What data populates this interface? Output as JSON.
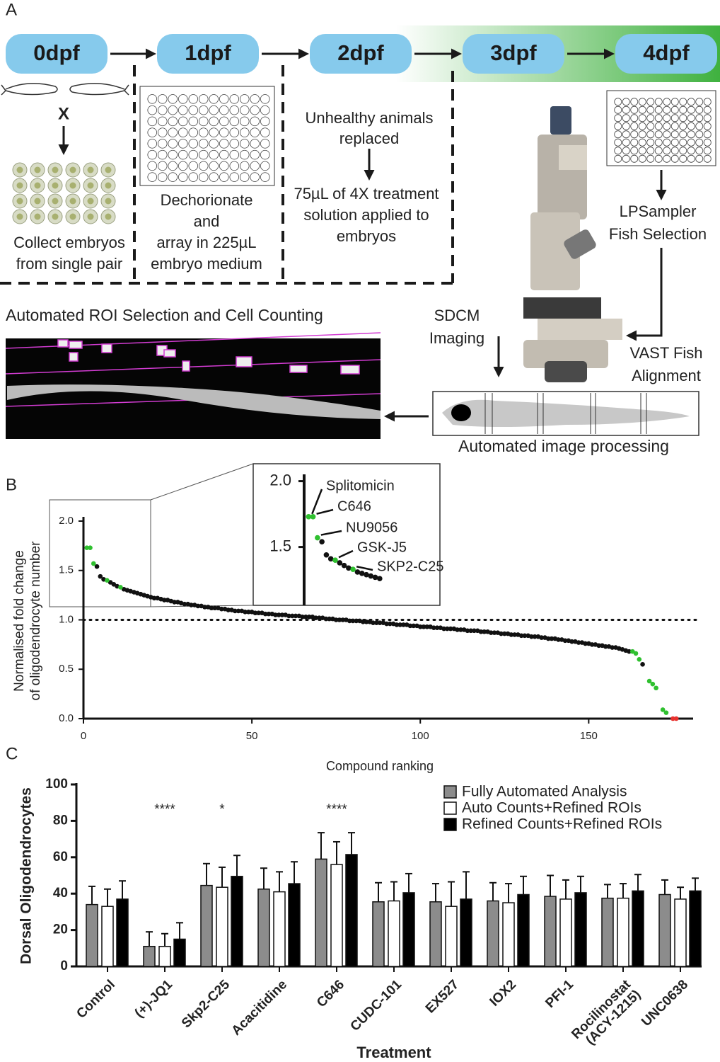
{
  "panel_labels": [
    "A",
    "B",
    "C"
  ],
  "workflow": {
    "stages": [
      "0dpf",
      "1dpf",
      "2dpf",
      "3dpf",
      "4dpf"
    ],
    "cross": "X",
    "collect": [
      "Collect embryos",
      "from single pair"
    ],
    "dechorionate": [
      "Dechorionate",
      "and",
      "array in 225µL",
      "embryo medium"
    ],
    "replaced": [
      "Unhealthy animals",
      "replaced"
    ],
    "treatment": [
      "75µL of 4X treatment",
      "solution applied to",
      "embryos"
    ],
    "lpsampler": [
      "LPSampler",
      "Fish Selection"
    ],
    "sdcm": [
      "SDCM",
      "Imaging"
    ],
    "vast": [
      "VAST Fish",
      "Alignment"
    ],
    "roi_title": "Automated ROI Selection and Cell Counting",
    "processing": "Automated image processing"
  },
  "chart_data": [
    {
      "type": "scatter",
      "y_label": [
        "Normalised  fold change",
        "of oligodendrocyte number"
      ],
      "x_label": "Compound ranking",
      "xlim": [
        0,
        181
      ],
      "xticks": [
        0,
        50,
        100,
        150
      ],
      "ylim": [
        0,
        2
      ],
      "yticks": [
        {
          "value": 0,
          "label": "0.0"
        },
        0.5,
        {
          "value": 1,
          "label": "1.0"
        },
        1.5,
        {
          "value": 2,
          "label": "2.0"
        }
      ],
      "hline": 1,
      "series": [
        {
          "color": "#111111",
          "x": [
            4,
            5,
            6,
            8,
            9,
            10,
            12,
            13,
            14,
            15,
            16,
            17,
            18,
            19,
            20,
            21,
            22,
            23,
            24,
            25,
            26,
            27,
            28,
            29,
            30,
            31,
            32,
            33,
            34,
            35,
            36,
            37,
            38,
            39,
            40,
            41,
            42,
            43,
            44,
            45,
            46,
            47,
            48,
            49,
            50,
            51,
            52,
            53,
            54,
            55,
            56,
            57,
            58,
            59,
            60,
            61,
            62,
            63,
            64,
            65,
            66,
            67,
            68,
            69,
            70,
            71,
            72,
            73,
            74,
            75,
            76,
            77,
            78,
            79,
            80,
            81,
            82,
            83,
            84,
            85,
            86,
            87,
            88,
            89,
            90,
            91,
            92,
            93,
            94,
            95,
            96,
            97,
            98,
            99,
            100,
            101,
            102,
            103,
            104,
            105,
            106,
            107,
            108,
            109,
            110,
            111,
            112,
            113,
            114,
            115,
            116,
            117,
            118,
            119,
            120,
            121,
            122,
            123,
            124,
            125,
            126,
            127,
            128,
            129,
            130,
            131,
            132,
            133,
            134,
            135,
            136,
            137,
            138,
            139,
            140,
            141,
            142,
            143,
            144,
            145,
            146,
            147,
            148,
            149,
            150,
            151,
            152,
            153,
            154,
            155,
            156,
            157,
            158,
            159,
            160,
            161,
            162,
            166
          ],
          "values": [
            1.54,
            1.44,
            1.41,
            1.38,
            1.36,
            1.34,
            1.31,
            1.3,
            1.29,
            1.28,
            1.27,
            1.26,
            1.25,
            1.24,
            1.23,
            1.22,
            1.22,
            1.21,
            1.2,
            1.2,
            1.19,
            1.18,
            1.18,
            1.17,
            1.16,
            1.16,
            1.15,
            1.15,
            1.14,
            1.14,
            1.13,
            1.13,
            1.12,
            1.12,
            1.12,
            1.11,
            1.11,
            1.1,
            1.1,
            1.09,
            1.09,
            1.09,
            1.08,
            1.08,
            1.08,
            1.07,
            1.07,
            1.07,
            1.06,
            1.06,
            1.06,
            1.05,
            1.05,
            1.05,
            1.05,
            1.04,
            1.04,
            1.04,
            1.04,
            1.03,
            1.03,
            1.03,
            1.03,
            1.02,
            1.02,
            1.02,
            1.01,
            1.01,
            1.01,
            1.0,
            1.0,
            1.0,
            1.0,
            0.99,
            0.99,
            0.99,
            0.99,
            0.98,
            0.98,
            0.98,
            0.97,
            0.97,
            0.97,
            0.97,
            0.96,
            0.96,
            0.96,
            0.95,
            0.95,
            0.95,
            0.95,
            0.94,
            0.94,
            0.94,
            0.93,
            0.93,
            0.93,
            0.93,
            0.92,
            0.92,
            0.92,
            0.91,
            0.91,
            0.91,
            0.91,
            0.9,
            0.9,
            0.9,
            0.89,
            0.89,
            0.89,
            0.89,
            0.88,
            0.88,
            0.88,
            0.87,
            0.87,
            0.87,
            0.86,
            0.86,
            0.86,
            0.85,
            0.85,
            0.85,
            0.84,
            0.84,
            0.84,
            0.83,
            0.83,
            0.83,
            0.82,
            0.82,
            0.81,
            0.81,
            0.81,
            0.8,
            0.8,
            0.79,
            0.79,
            0.78,
            0.78,
            0.77,
            0.77,
            0.76,
            0.76,
            0.75,
            0.75,
            0.74,
            0.74,
            0.73,
            0.73,
            0.72,
            0.72,
            0.71,
            0.7,
            0.69,
            0.68,
            0.55
          ]
        },
        {
          "color": "#2fc02f",
          "x": [
            1,
            2,
            3,
            7,
            11,
            163,
            164,
            165,
            168,
            169,
            170,
            172,
            173
          ],
          "values": [
            1.73,
            1.73,
            1.57,
            1.4,
            1.33,
            0.68,
            0.66,
            0.6,
            0.38,
            0.35,
            0.31,
            0.09,
            0.06
          ]
        },
        {
          "color": "#e8322f",
          "x": [
            175,
            176
          ],
          "values": [
            0,
            0
          ]
        }
      ],
      "inset": {
        "xlim": [
          0,
          17.5
        ],
        "ylim": [
          1.1,
          2.05
        ],
        "yticks": [
          {
            "value": 2,
            "label": "2.0"
          },
          1.5
        ],
        "annotations": [
          {
            "text": "Splitomicin",
            "x": 1
          },
          {
            "text": "C646",
            "x": 2
          },
          {
            "text": "NU9056",
            "x": 3
          },
          {
            "text": "GSK-J5",
            "x": 7
          },
          {
            "text": "SKP2-C25",
            "x": 11
          }
        ]
      }
    },
    {
      "type": "bar",
      "y_label": "Dorsal Oligodendrocytes",
      "x_label": "Treatment",
      "categories": [
        "Control",
        "(+)-JQ1",
        "Skp2-C25",
        "Acacitidine",
        "C646",
        "CUDC-101",
        "EX527",
        "IOX2",
        "PFI-1",
        "Rocilinostat\n(ACY-1215)",
        "UNC0638"
      ],
      "ylim": [
        0,
        100
      ],
      "yticks": [
        0,
        20,
        40,
        60,
        80,
        100
      ],
      "series": [
        {
          "name": "Fully Automated Analysis",
          "color": "#8c8c8c",
          "values": [
            34,
            11,
            44.5,
            42.5,
            59,
            35.5,
            35.5,
            36,
            38.5,
            37.5,
            39.5
          ],
          "errors": [
            10,
            8,
            12,
            11.5,
            14.5,
            10.5,
            10,
            10,
            11.5,
            7.5,
            8
          ]
        },
        {
          "name": "Auto Counts+Refined ROIs",
          "color": "#ffffff",
          "values": [
            33,
            11,
            43.5,
            41,
            56,
            36,
            33,
            35,
            37,
            37.5,
            37
          ],
          "errors": [
            9.5,
            7,
            11,
            11,
            12.5,
            10.5,
            13.5,
            10.5,
            10.5,
            8,
            6.5
          ]
        },
        {
          "name": "Refined Counts+Refined ROIs",
          "color": "#000000",
          "values": [
            37,
            15,
            49.5,
            45.5,
            61.5,
            40.5,
            37,
            39.5,
            40.5,
            41.5,
            41.5
          ],
          "errors": [
            10,
            9,
            11.5,
            12,
            12,
            10.5,
            15,
            10,
            9,
            9,
            7
          ]
        }
      ],
      "annotations": [
        {
          "text": "****",
          "category": "(+)-JQ1"
        },
        {
          "text": "*",
          "category": "Skp2-C25"
        },
        {
          "text": "****",
          "category": "C646"
        }
      ]
    }
  ]
}
